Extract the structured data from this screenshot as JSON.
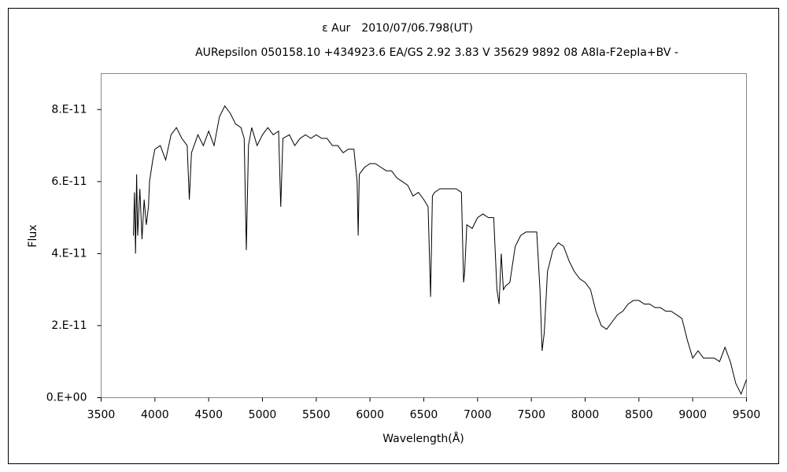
{
  "chart_data": {
    "type": "line",
    "title": "ε Aur　2010/07/06.798(UT)",
    "subtitle": "AURepsilon 050158.10 +434923.6 EA/GS 2.92 3.83 V 35629 9892 08 A8Ia-F2epIa+BV -",
    "xlabel": "Wavelength(Å)",
    "ylabel": "Flux",
    "color": "#000000",
    "xlim": [
      3500,
      9500
    ],
    "xticks": [
      3500,
      4000,
      4500,
      5000,
      5500,
      6000,
      6500,
      7000,
      7500,
      8000,
      8500,
      9000,
      9500
    ],
    "ylim": [
      0,
      9e-11
    ],
    "yticks": [
      {
        "value": 0,
        "label": "0.E+00"
      },
      {
        "value": 2e-11,
        "label": "2.E-11"
      },
      {
        "value": 4e-11,
        "label": "4.E-11"
      },
      {
        "value": 6e-11,
        "label": "6.E-11"
      },
      {
        "value": 8e-11,
        "label": "8.E-11"
      }
    ],
    "grid": false,
    "x": [
      3800,
      3810,
      3820,
      3830,
      3840,
      3860,
      3880,
      3900,
      3920,
      3940,
      3950,
      3980,
      4000,
      4050,
      4100,
      4150,
      4200,
      4250,
      4300,
      4320,
      4340,
      4400,
      4450,
      4500,
      4550,
      4600,
      4650,
      4700,
      4750,
      4800,
      4830,
      4850,
      4870,
      4900,
      4950,
      5000,
      5050,
      5100,
      5150,
      5170,
      5190,
      5250,
      5300,
      5350,
      5400,
      5450,
      5500,
      5550,
      5600,
      5650,
      5700,
      5750,
      5800,
      5850,
      5880,
      5890,
      5900,
      5950,
      6000,
      6050,
      6100,
      6150,
      6200,
      6250,
      6300,
      6350,
      6400,
      6450,
      6500,
      6540,
      6563,
      6580,
      6600,
      6650,
      6700,
      6750,
      6800,
      6850,
      6870,
      6880,
      6900,
      6950,
      7000,
      7050,
      7100,
      7150,
      7180,
      7200,
      7220,
      7240,
      7260,
      7300,
      7350,
      7400,
      7450,
      7500,
      7550,
      7580,
      7600,
      7620,
      7650,
      7700,
      7750,
      7800,
      7850,
      7900,
      7950,
      8000,
      8050,
      8100,
      8150,
      8200,
      8250,
      8300,
      8350,
      8400,
      8450,
      8500,
      8550,
      8600,
      8650,
      8700,
      8750,
      8800,
      8850,
      8900,
      8950,
      9000,
      9050,
      9100,
      9150,
      9200,
      9250,
      9300,
      9350,
      9400,
      9450,
      9500
    ],
    "values": [
      4.5e-11,
      5.7e-11,
      4e-11,
      6.2e-11,
      4.5e-11,
      5.8e-11,
      4.4e-11,
      5.5e-11,
      4.8e-11,
      5.3e-11,
      6e-11,
      6.6e-11,
      6.9e-11,
      7e-11,
      6.6e-11,
      7.3e-11,
      7.5e-11,
      7.2e-11,
      7e-11,
      5.5e-11,
      6.8e-11,
      7.3e-11,
      7e-11,
      7.4e-11,
      7e-11,
      7.8e-11,
      8.1e-11,
      7.9e-11,
      7.6e-11,
      7.5e-11,
      7.2e-11,
      4.1e-11,
      7e-11,
      7.5e-11,
      7e-11,
      7.3e-11,
      7.5e-11,
      7.3e-11,
      7.4e-11,
      5.3e-11,
      7.2e-11,
      7.3e-11,
      7e-11,
      7.2e-11,
      7.3e-11,
      7.2e-11,
      7.3e-11,
      7.2e-11,
      7.2e-11,
      7e-11,
      7e-11,
      6.8e-11,
      6.9e-11,
      6.9e-11,
      6e-11,
      4.5e-11,
      6.2e-11,
      6.4e-11,
      6.5e-11,
      6.5e-11,
      6.4e-11,
      6.3e-11,
      6.3e-11,
      6.1e-11,
      6e-11,
      5.9e-11,
      5.6e-11,
      5.7e-11,
      5.5e-11,
      5.3e-11,
      2.8e-11,
      5.6e-11,
      5.7e-11,
      5.8e-11,
      5.8e-11,
      5.8e-11,
      5.8e-11,
      5.7e-11,
      3.2e-11,
      3.5e-11,
      4.8e-11,
      4.7e-11,
      5e-11,
      5.1e-11,
      5e-11,
      5e-11,
      3e-11,
      2.6e-11,
      4e-11,
      3e-11,
      3.1e-11,
      3.2e-11,
      4.2e-11,
      4.5e-11,
      4.6e-11,
      4.6e-11,
      4.6e-11,
      3e-11,
      1.3e-11,
      1.8e-11,
      3.5e-11,
      4.1e-11,
      4.3e-11,
      4.2e-11,
      3.8e-11,
      3.5e-11,
      3.3e-11,
      3.2e-11,
      3e-11,
      2.4e-11,
      2e-11,
      1.9e-11,
      2.1e-11,
      2.3e-11,
      2.4e-11,
      2.6e-11,
      2.7e-11,
      2.7e-11,
      2.6e-11,
      2.6e-11,
      2.5e-11,
      2.5e-11,
      2.4e-11,
      2.4e-11,
      2.3e-11,
      2.2e-11,
      1.6e-11,
      1.1e-11,
      1.3e-11,
      1.1e-11,
      1.1e-11,
      1.1e-11,
      1e-11,
      1.4e-11,
      1e-11,
      4e-12,
      1e-12,
      5e-12
    ]
  }
}
